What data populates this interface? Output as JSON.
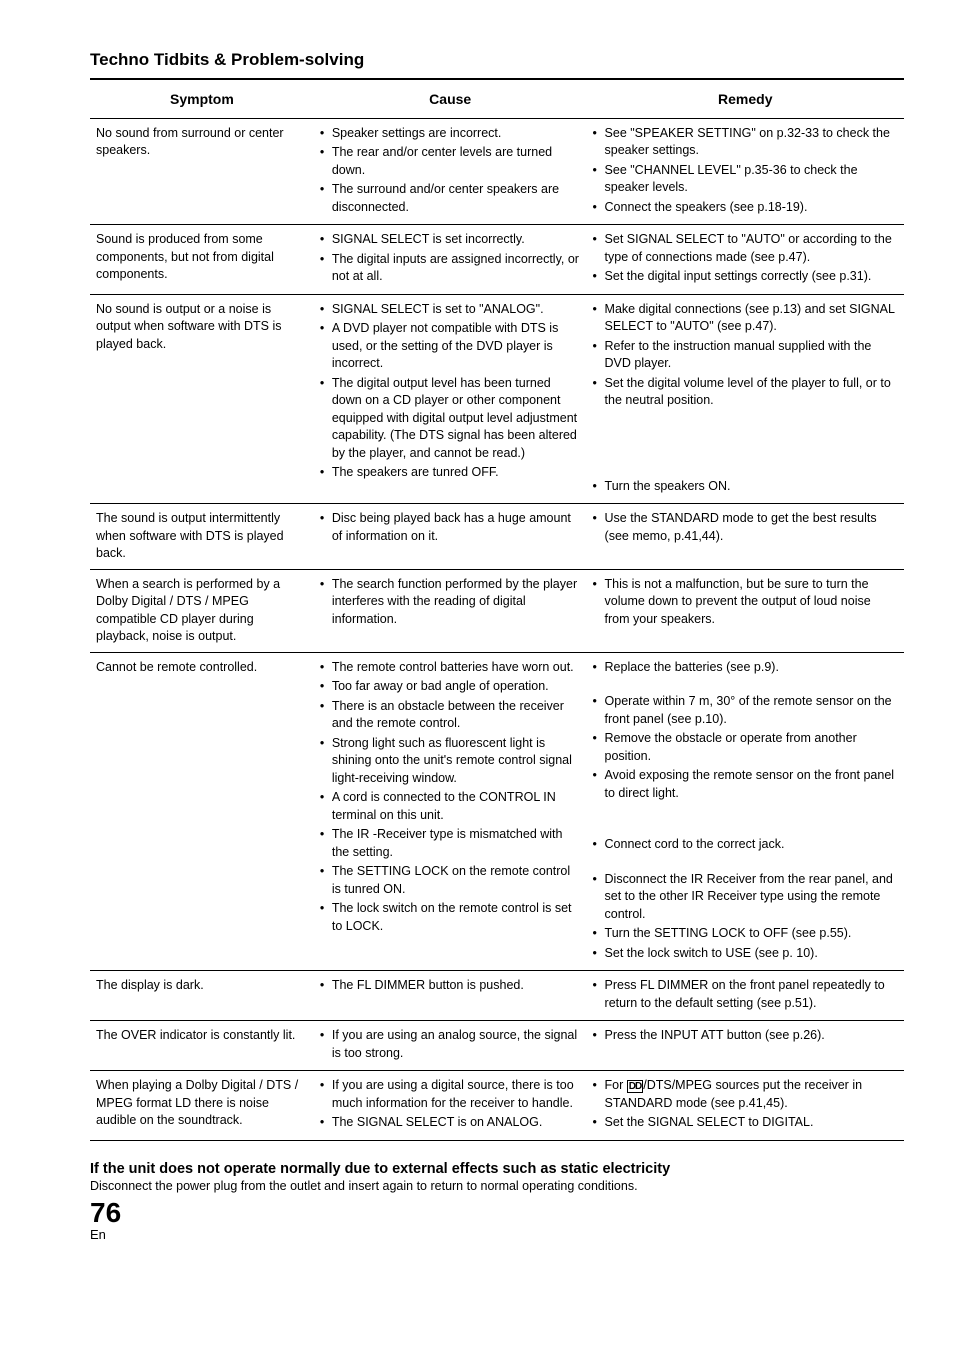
{
  "section_title": "Techno Tidbits & Problem-solving",
  "columns": {
    "symptom": "Symptom",
    "cause": "Cause",
    "remedy": "Remedy"
  },
  "rows": [
    {
      "symptom": "No sound from surround or center speakers.",
      "cause": [
        "Speaker settings are incorrect.",
        "The rear and/or center levels are turned down.",
        "The surround and/or center speakers are disconnected."
      ],
      "remedy": [
        "See \"SPEAKER SETTING\" on p.32-33 to check the speaker settings.",
        "See \"CHANNEL LEVEL\" p.35-36 to check the speaker levels.",
        "Connect the speakers (see p.18-19)."
      ]
    },
    {
      "symptom": "Sound is produced from some components, but not from digital components.",
      "cause": [
        "SIGNAL SELECT is set incorrectly.",
        "The digital inputs are assigned incorrectly, or not at all."
      ],
      "remedy": [
        "Set SIGNAL SELECT to \"AUTO\" or according to the type of connections made (see p.47).",
        "Set the digital input settings correctly (see p.31)."
      ]
    },
    {
      "symptom": "No sound is output or a noise is output when software with DTS is played back.",
      "cause": [
        "SIGNAL SELECT is set to \"ANALOG\".",
        "A DVD player not compatible with DTS is used, or the setting of the DVD player is incorrect.",
        "The digital output level has been turned down on a CD player or other component equipped with digital output level adjustment capability. (The DTS signal has been altered by the player, and cannot be read.)",
        "The speakers are tunred OFF."
      ],
      "remedy": [
        "Make digital connections (see p.13) and set SIGNAL SELECT to \"AUTO\" (see p.47).",
        "Refer to the instruction manual supplied with the DVD player.",
        "Set the digital volume level of the player to full, or to the neutral position.",
        "Turn the speakers ON."
      ],
      "remedy_spacing": [
        0,
        0,
        4,
        0
      ]
    },
    {
      "symptom": "The sound is output intermittently when software with DTS is played back.",
      "cause": [
        "Disc being played back has a huge amount of information on it."
      ],
      "remedy": [
        "Use the STANDARD mode to get the best results (see memo, p.41,44)."
      ]
    },
    {
      "symptom": "When a search is performed by a Dolby Digital / DTS / MPEG compatible CD player during playback, noise is output.",
      "cause": [
        "The search function performed by the player interferes with the reading of digital information."
      ],
      "remedy": [
        "This is not a malfunction, but be sure to turn the volume down to prevent the output of loud noise from your speakers."
      ]
    },
    {
      "symptom": "Cannot be remote controlled.",
      "cause": [
        "The remote control batteries have worn out.",
        "Too far away or bad angle of operation.",
        "There is an obstacle between the receiver and the remote control.",
        "Strong light such as fluorescent light is shining onto the unit's remote control signal light-receiving window.",
        "A cord is connected to the CONTROL IN terminal on this unit.",
        "The IR -Receiver type is mismatched with the setting.",
        "The SETTING LOCK on the remote control is tunred ON.",
        "The lock switch on the remote control is set to LOCK."
      ],
      "remedy": [
        "Replace the batteries (see p.9).",
        "Operate within 7 m, 30° of the remote sensor on the front panel (see p.10).",
        "Remove the obstacle or operate from another position.",
        "Avoid exposing the remote sensor on the front panel to direct light.",
        "Connect cord to the correct jack.",
        "Disconnect the IR Receiver from the rear panel, and set to the other IR Receiver type using the remote control.",
        "Turn the SETTING LOCK to OFF (see p.55).",
        "Set  the lock switch to USE (see p. 10)."
      ],
      "remedy_spacing": [
        1,
        0,
        0,
        2,
        1,
        0,
        0,
        0
      ]
    },
    {
      "symptom": "The display is dark.",
      "cause": [
        "The FL DIMMER button is pushed."
      ],
      "remedy": [
        "Press FL DIMMER on the front panel repeatedly to return to the default setting (see p.51)."
      ]
    },
    {
      "symptom": "The OVER indicator is constantly lit.",
      "cause": [
        "If you are using an analog source, the signal is too strong."
      ],
      "remedy": [
        "Press the INPUT ATT button (see p.26)."
      ]
    },
    {
      "symptom": "When playing a Dolby Digital / DTS / MPEG format LD  there is noise audible on the soundtrack.",
      "cause": [
        "If you are using a digital source, there is too much information for the receiver to handle.",
        "The SIGNAL SELECT is on ANALOG."
      ],
      "remedy": [
        "For {{DD}}/DTS/MPEG sources put the receiver in STANDARD mode (see p.41,45).",
        "Set the SIGNAL SELECT to DIGITAL."
      ]
    }
  ],
  "footnote_title": "If the unit does not operate normally due to external effects such as static electricity",
  "footnote_text": "Disconnect the power plug from the outlet and insert again to return to normal operating conditions.",
  "page_num": "76",
  "page_lang": "En"
}
